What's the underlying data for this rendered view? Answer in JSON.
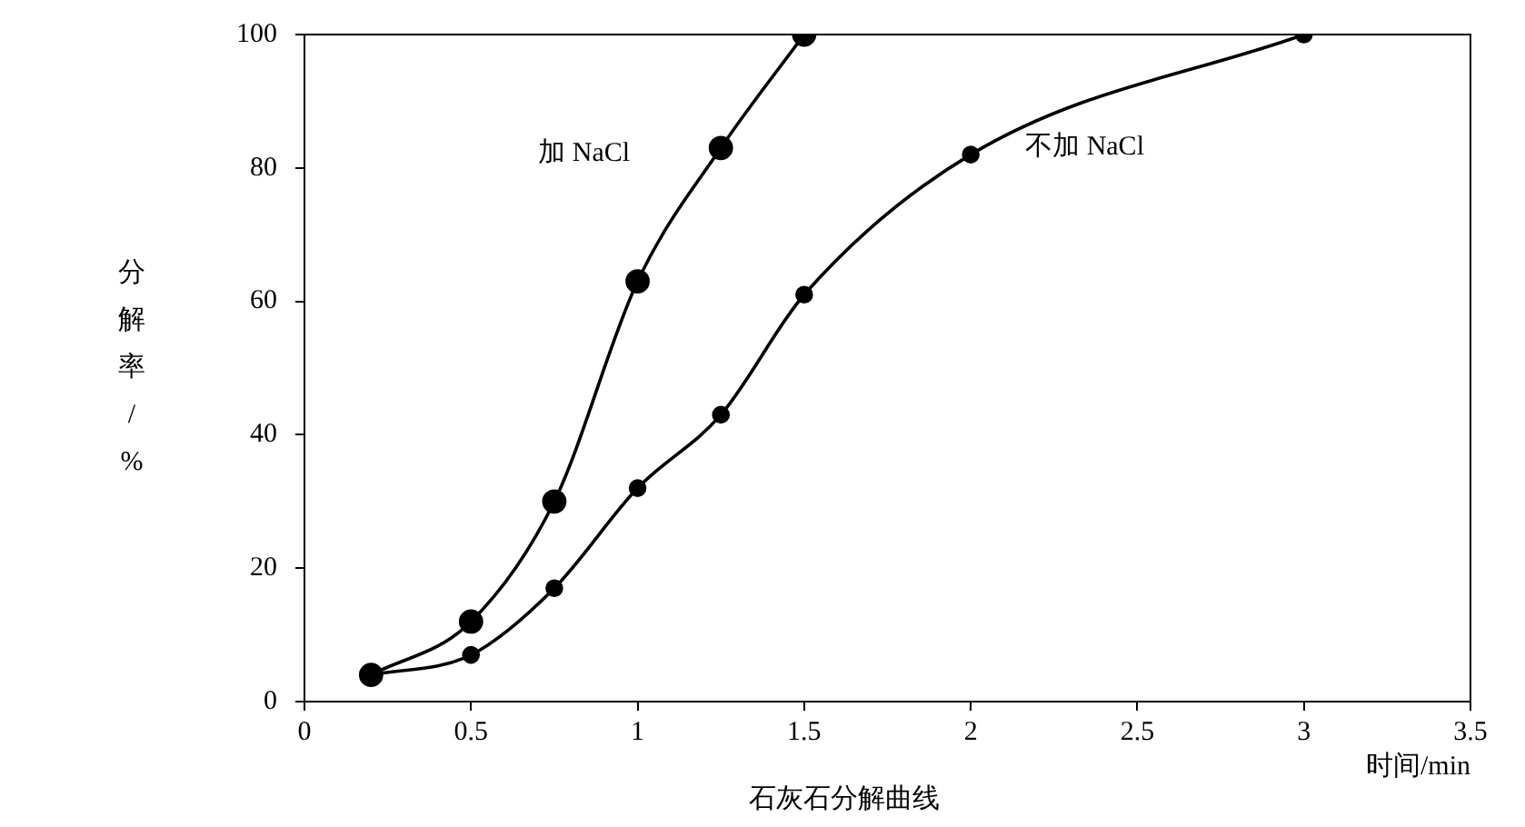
{
  "chart_data": {
    "type": "line",
    "title": "石灰石分解曲线",
    "xlabel": "时间/min",
    "ylabel": "分解率/%",
    "xlim": [
      0,
      3.5
    ],
    "xticks": [
      0,
      0.5,
      1,
      1.5,
      2,
      2.5,
      3,
      3.5
    ],
    "ylim": [
      0,
      100
    ],
    "yticks": [
      0,
      20,
      40,
      60,
      80,
      100
    ],
    "grid": false,
    "legend": false,
    "marker": "circle",
    "line_style": "solid",
    "series": [
      {
        "name": "加 NaCl",
        "color": "#000000",
        "x": [
          0.2,
          0.5,
          0.75,
          1,
          1.25,
          1.5
        ],
        "values": [
          4,
          12,
          30,
          63,
          83,
          100
        ]
      },
      {
        "name": "不加 NaCl",
        "color": "#000000",
        "x": [
          0.2,
          0.5,
          0.75,
          1,
          1.25,
          1.5,
          2,
          3
        ],
        "values": [
          4,
          7,
          17,
          32,
          43,
          61,
          82,
          100
        ]
      }
    ]
  }
}
